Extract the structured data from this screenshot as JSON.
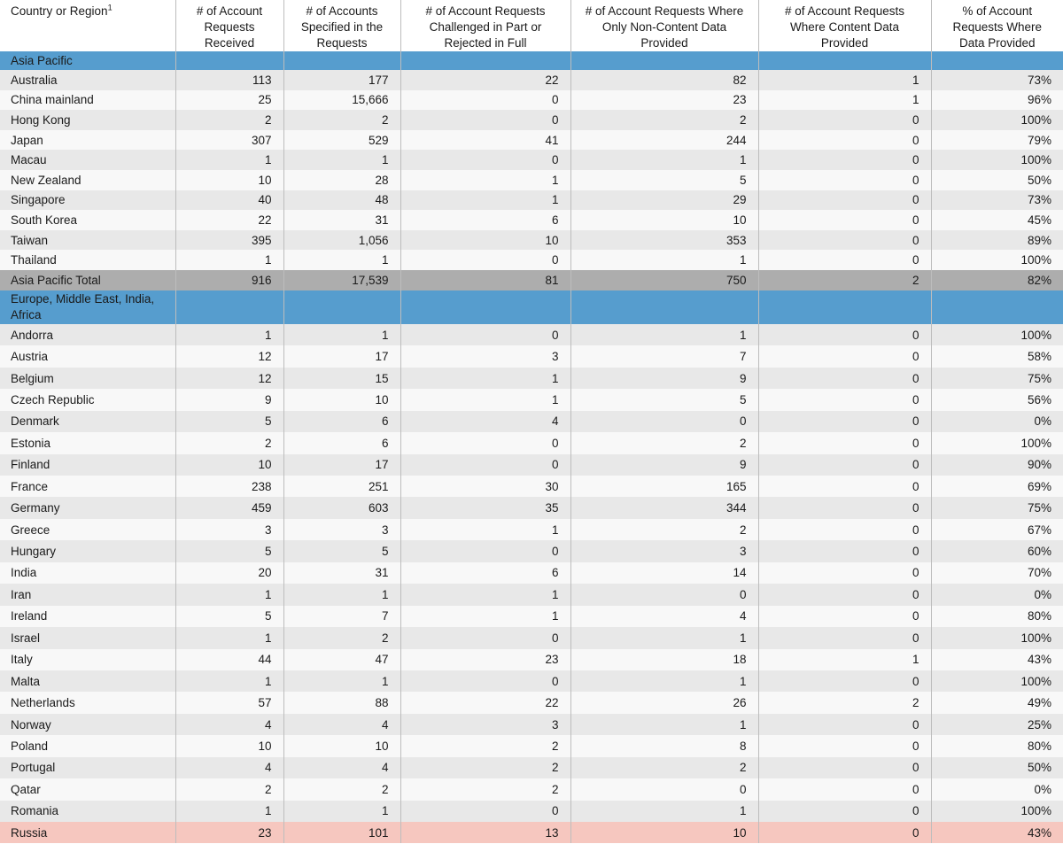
{
  "colors": {
    "section_header_bg": "#569dce",
    "stripe_gray": "#e8e8e8",
    "stripe_white": "#f8f8f8",
    "total_row_bg": "#adadad",
    "highlight_row_bg": "#f6c7bf",
    "divider": "#bdbdbd",
    "text": "#1a1a1a"
  },
  "table": {
    "columns": [
      {
        "label": "Country or Region",
        "superscript": "1"
      },
      {
        "label": "# of Account Requests Received"
      },
      {
        "label": "# of Accounts Specified in the Requests"
      },
      {
        "label": "# of Account Requests Challenged in Part or Rejected in Full"
      },
      {
        "label": "# of Account Requests Where Only Non-Content Data Provided"
      },
      {
        "label": "# of Account Requests Where Content Data Provided"
      },
      {
        "label": "% of Account Requests Where Data Provided"
      }
    ],
    "sections": [
      {
        "header": "Asia Pacific",
        "rows": [
          {
            "name": "Australia",
            "values": [
              "113",
              "177",
              "22",
              "82",
              "1",
              "73%"
            ]
          },
          {
            "name": "China mainland",
            "values": [
              "25",
              "15,666",
              "0",
              "23",
              "1",
              "96%"
            ]
          },
          {
            "name": "Hong Kong",
            "values": [
              "2",
              "2",
              "0",
              "2",
              "0",
              "100%"
            ]
          },
          {
            "name": "Japan",
            "values": [
              "307",
              "529",
              "41",
              "244",
              "0",
              "79%"
            ]
          },
          {
            "name": "Macau",
            "values": [
              "1",
              "1",
              "0",
              "1",
              "0",
              "100%"
            ]
          },
          {
            "name": "New Zealand",
            "values": [
              "10",
              "28",
              "1",
              "5",
              "0",
              "50%"
            ]
          },
          {
            "name": "Singapore",
            "values": [
              "40",
              "48",
              "1",
              "29",
              "0",
              "73%"
            ]
          },
          {
            "name": "South Korea",
            "values": [
              "22",
              "31",
              "6",
              "10",
              "0",
              "45%"
            ]
          },
          {
            "name": "Taiwan",
            "values": [
              "395",
              "1,056",
              "10",
              "353",
              "0",
              "89%"
            ]
          },
          {
            "name": "Thailand",
            "values": [
              "1",
              "1",
              "0",
              "1",
              "0",
              "100%"
            ]
          }
        ],
        "total": {
          "name": "Asia Pacific Total",
          "values": [
            "916",
            "17,539",
            "81",
            "750",
            "2",
            "82%"
          ]
        }
      },
      {
        "header": "Europe, Middle East, India, Africa",
        "rows": [
          {
            "name": "Andorra",
            "values": [
              "1",
              "1",
              "0",
              "1",
              "0",
              "100%"
            ]
          },
          {
            "name": "Austria",
            "values": [
              "12",
              "17",
              "3",
              "7",
              "0",
              "58%"
            ]
          },
          {
            "name": "Belgium",
            "values": [
              "12",
              "15",
              "1",
              "9",
              "0",
              "75%"
            ]
          },
          {
            "name": "Czech Republic",
            "values": [
              "9",
              "10",
              "1",
              "5",
              "0",
              "56%"
            ]
          },
          {
            "name": "Denmark",
            "values": [
              "5",
              "6",
              "4",
              "0",
              "0",
              "0%"
            ]
          },
          {
            "name": "Estonia",
            "values": [
              "2",
              "6",
              "0",
              "2",
              "0",
              "100%"
            ]
          },
          {
            "name": "Finland",
            "values": [
              "10",
              "17",
              "0",
              "9",
              "0",
              "90%"
            ]
          },
          {
            "name": "France",
            "values": [
              "238",
              "251",
              "30",
              "165",
              "0",
              "69%"
            ]
          },
          {
            "name": "Germany",
            "values": [
              "459",
              "603",
              "35",
              "344",
              "0",
              "75%"
            ]
          },
          {
            "name": "Greece",
            "values": [
              "3",
              "3",
              "1",
              "2",
              "0",
              "67%"
            ]
          },
          {
            "name": "Hungary",
            "values": [
              "5",
              "5",
              "0",
              "3",
              "0",
              "60%"
            ]
          },
          {
            "name": "India",
            "values": [
              "20",
              "31",
              "6",
              "14",
              "0",
              "70%"
            ]
          },
          {
            "name": "Iran",
            "values": [
              "1",
              "1",
              "1",
              "0",
              "0",
              "0%"
            ]
          },
          {
            "name": "Ireland",
            "values": [
              "5",
              "7",
              "1",
              "4",
              "0",
              "80%"
            ]
          },
          {
            "name": "Israel",
            "values": [
              "1",
              "2",
              "0",
              "1",
              "0",
              "100%"
            ]
          },
          {
            "name": "Italy",
            "values": [
              "44",
              "47",
              "23",
              "18",
              "1",
              "43%"
            ]
          },
          {
            "name": "Malta",
            "values": [
              "1",
              "1",
              "0",
              "1",
              "0",
              "100%"
            ]
          },
          {
            "name": "Netherlands",
            "values": [
              "57",
              "88",
              "22",
              "26",
              "2",
              "49%"
            ]
          },
          {
            "name": "Norway",
            "values": [
              "4",
              "4",
              "3",
              "1",
              "0",
              "25%"
            ]
          },
          {
            "name": "Poland",
            "values": [
              "10",
              "10",
              "2",
              "8",
              "0",
              "80%"
            ]
          },
          {
            "name": "Portugal",
            "values": [
              "4",
              "4",
              "2",
              "2",
              "0",
              "50%"
            ]
          },
          {
            "name": "Qatar",
            "values": [
              "2",
              "2",
              "2",
              "0",
              "0",
              "0%"
            ]
          },
          {
            "name": "Romania",
            "values": [
              "1",
              "1",
              "0",
              "1",
              "0",
              "100%"
            ]
          },
          {
            "name": "Russia",
            "values": [
              "23",
              "101",
              "13",
              "10",
              "0",
              "43%"
            ],
            "highlight": true
          }
        ]
      }
    ]
  }
}
